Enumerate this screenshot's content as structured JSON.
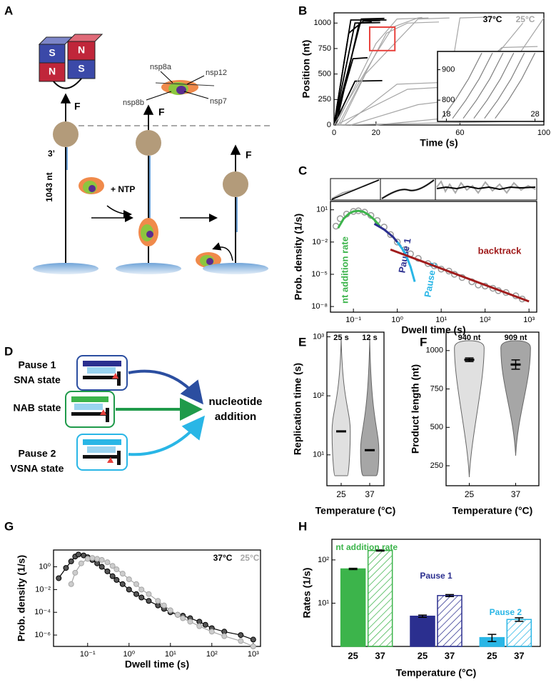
{
  "panel_labels": [
    "A",
    "B",
    "C",
    "D",
    "E",
    "F",
    "G",
    "H"
  ],
  "diagram_a": {
    "magnets": [
      "S",
      "N",
      "N",
      "S"
    ],
    "forces": [
      "F",
      "F",
      "F"
    ],
    "proteins": [
      "nsp8a",
      "nsp12",
      "nsp8b",
      "nsp7"
    ],
    "end_label": "3’",
    "reagent": "+ NTP",
    "length": "1043 nt"
  },
  "diagram_d": {
    "pauses": [
      {
        "name": "Pause 1",
        "state": "SNA state"
      },
      {
        "name": "Pause 2",
        "state": "VSNA state"
      }
    ],
    "nab": "NAB state",
    "target": [
      "nucleotide",
      "addition"
    ]
  },
  "chart_data": [
    {
      "type": "line",
      "xlabel": "Time (s)",
      "ylabel": "Position (nt)",
      "xlim": [
        0,
        100
      ],
      "ylim": [
        0,
        1100
      ],
      "xticks": [
        0,
        20,
        60,
        100
      ],
      "yticks": [
        0,
        250,
        500,
        750,
        1000
      ],
      "series": [
        {
          "name": "37°C",
          "color": "#000000",
          "traces": [
            {
              "x": [
                0,
                8,
                25
              ],
              "values": [
                0,
                1030,
                1030
              ]
            },
            {
              "x": [
                0,
                10,
                22
              ],
              "values": [
                0,
                1000,
                1005
              ]
            },
            {
              "x": [
                0,
                7,
                14,
                22
              ],
              "values": [
                0,
                900,
                1020,
                1025
              ]
            },
            {
              "x": [
                1,
                12,
                18
              ],
              "values": [
                0,
                1000,
                1010
              ]
            },
            {
              "x": [
                0,
                9,
                16
              ],
              "values": [
                0,
                650,
                660
              ]
            },
            {
              "x": [
                0,
                10,
                23
              ],
              "values": [
                0,
                430,
                435
              ]
            },
            {
              "x": [
                0,
                13,
                24
              ],
              "values": [
                0,
                1040,
                1045
              ]
            }
          ]
        },
        {
          "name": "25°C",
          "color": "#a6a6a6",
          "traces": [
            {
              "x": [
                1,
                20,
                30,
                45
              ],
              "values": [
                0,
                800,
                1040,
                1050
              ]
            },
            {
              "x": [
                2,
                25,
                35,
                50
              ],
              "values": [
                0,
                900,
                1000,
                1010
              ]
            },
            {
              "x": [
                3,
                15,
                40,
                55
              ],
              "values": [
                0,
                500,
                1040,
                1050
              ]
            },
            {
              "x": [
                5,
                30,
                55,
                60,
                75
              ],
              "values": [
                0,
                400,
                420,
                1050,
                1060
              ]
            },
            {
              "x": [
                8,
                40,
                60,
                90
              ],
              "values": [
                0,
                200,
                250,
                1000
              ]
            },
            {
              "x": [
                20,
                70,
                85,
                100
              ],
              "values": [
                0,
                100,
                600,
                1050
              ]
            },
            {
              "x": [
                1,
                35,
                60,
                80,
                97
              ],
              "values": [
                0,
                350,
                380,
                760,
                770
              ]
            },
            {
              "x": [
                1,
                100
              ],
              "values": [
                0,
                40
              ]
            },
            {
              "x": [
                0,
                20,
                28,
                40,
                42
              ],
              "values": [
                0,
                700,
                960,
                1050,
                1055
              ]
            }
          ]
        }
      ],
      "inset": {
        "xlim": [
          17,
          29
        ],
        "ylim": [
          730,
          960
        ],
        "xticks": [
          18,
          28
        ],
        "yticks": [
          800,
          900
        ],
        "color": "#808080",
        "traces": [
          {
            "x": [
              17.5,
              19,
              20.5,
              22
            ],
            "values": [
              740,
              800,
              870,
              955
            ]
          },
          {
            "x": [
              18.7,
              20.2,
              21.7,
              23.2
            ],
            "values": [
              740,
              800,
              870,
              955
            ]
          },
          {
            "x": [
              19.9,
              21.4,
              22.9,
              24.4
            ],
            "values": [
              740,
              800,
              870,
              955
            ]
          },
          {
            "x": [
              21.1,
              22.6,
              24.1,
              25.6
            ],
            "values": [
              740,
              800,
              870,
              955
            ]
          },
          {
            "x": [
              22.3,
              23.8,
              25.3,
              26.8
            ],
            "values": [
              740,
              800,
              870,
              955
            ]
          },
          {
            "x": [
              23.5,
              25,
              26.5,
              28
            ],
            "values": [
              740,
              800,
              870,
              955
            ]
          }
        ],
        "box_color": "#e8413c"
      }
    },
    {
      "type": "scatter",
      "xlabel": "Dwell time (s)",
      "ylabel": "Prob. density (1/s)",
      "xlog": true,
      "ylog": true,
      "xlim": [
        0.03,
        1500
      ],
      "ylim": [
        3e-09,
        60
      ],
      "xticks": [
        {
          "value": 0.1,
          "label": "10⁻¹"
        },
        {
          "value": 1,
          "label": "10⁰"
        },
        {
          "value": 10,
          "label": "10¹"
        },
        {
          "value": 100,
          "label": "10²"
        },
        {
          "value": 1000,
          "label": "10³"
        }
      ],
      "yticks": [
        {
          "value": 10,
          "label": "10¹"
        },
        {
          "value": 0.01,
          "label": "10⁻²"
        },
        {
          "value": 1e-05,
          "label": "10⁻⁵"
        },
        {
          "value": 1e-08,
          "label": "10⁻⁸"
        }
      ],
      "color": "#9a9a9a",
      "x": [
        0.04,
        0.05,
        0.07,
        0.1,
        0.13,
        0.18,
        0.25,
        0.35,
        0.5,
        0.7,
        1,
        1.5,
        2,
        3,
        5,
        7,
        10,
        15,
        20,
        30,
        50,
        70,
        100,
        150,
        200,
        300,
        500,
        700
      ],
      "values": [
        0.3,
        1.5,
        4,
        7,
        8,
        6,
        3,
        1,
        0.25,
        0.05,
        0.01,
        0.002,
        0.0008,
        0.0003,
        0.0001,
        6e-05,
        3e-05,
        2e-05,
        1e-05,
        5e-06,
        2e-06,
        1e-06,
        8e-07,
        5e-07,
        3e-07,
        2e-07,
        1e-07,
        5e-08
      ],
      "fits": [
        {
          "name": "nt addition rate",
          "color": "#3cb44b",
          "x": [
            0.045,
            0.06,
            0.08,
            0.1,
            0.13,
            0.17,
            0.22,
            0.3,
            0.4
          ],
          "values": [
            0.2,
            1.5,
            4.5,
            7,
            8,
            6.5,
            3.5,
            1.2,
            0.3
          ]
        },
        {
          "name": "Pause 1",
          "color": "#2b2f8f",
          "x": [
            0.3,
            0.5,
            0.8,
            1.2
          ],
          "values": [
            0.5,
            0.15,
            0.03,
            0.004
          ]
        },
        {
          "name": "Pause 2",
          "color": "#29b6e6",
          "x": [
            1,
            1.5,
            2,
            2.5
          ],
          "values": [
            0.01,
            0.001,
            5e-05,
            2e-06
          ]
        },
        {
          "name": "backtrack",
          "color": "#a01c1c",
          "x": [
            0.7,
            1000
          ],
          "values": [
            0.002,
            3e-08
          ]
        }
      ]
    },
    {
      "type": "violin",
      "xlabel": "Temperature (°C)",
      "ylabel": "Replication time (s)",
      "ylog": true,
      "ylim": [
        3,
        1200
      ],
      "yticks": [
        {
          "value": 10,
          "label": "10¹"
        },
        {
          "value": 100,
          "label": "10²"
        },
        {
          "value": 1000,
          "label": "10³"
        }
      ],
      "categories": [
        "25",
        "37"
      ],
      "values": [
        25,
        12
      ],
      "value_labels": [
        "25 s",
        "12 s"
      ],
      "colors": [
        "#e0e0e0",
        "#a6a6a6"
      ]
    },
    {
      "type": "violin",
      "xlabel": "Temperature (°C)",
      "ylabel": "Product length (nt)",
      "ylim": [
        120,
        1120
      ],
      "yticks": [
        250,
        500,
        750,
        1000
      ],
      "categories": [
        "25",
        "37"
      ],
      "values": [
        940,
        909
      ],
      "errors": [
        12,
        30
      ],
      "value_labels": [
        "940 nt",
        "909 nt"
      ],
      "colors": [
        "#e0e0e0",
        "#a6a6a6"
      ]
    },
    {
      "type": "scatter",
      "xlabel": "Dwell time (s)",
      "ylabel": "Prob. density (1/s)",
      "xlog": true,
      "ylog": true,
      "xlim": [
        0.015,
        1500
      ],
      "ylim": [
        1e-07,
        30
      ],
      "xticks": [
        {
          "value": 0.1,
          "label": "10⁻¹"
        },
        {
          "value": 1,
          "label": "10⁰"
        },
        {
          "value": 10,
          "label": "10¹"
        },
        {
          "value": 100,
          "label": "10²"
        },
        {
          "value": 1000,
          "label": "10³"
        }
      ],
      "yticks": [
        {
          "value": 1,
          "label": "10⁰"
        },
        {
          "value": 0.01,
          "label": "10⁻²"
        },
        {
          "value": 0.0001,
          "label": "10⁻⁴"
        },
        {
          "value": 1e-06,
          "label": "10⁻⁶"
        }
      ],
      "series": [
        {
          "name": "37°C",
          "color": "#000000",
          "x": [
            0.02,
            0.03,
            0.04,
            0.05,
            0.06,
            0.08,
            0.1,
            0.13,
            0.17,
            0.22,
            0.3,
            0.4,
            0.5,
            0.7,
            1,
            1.5,
            2,
            3,
            5,
            7,
            10,
            15,
            20,
            30,
            50,
            70,
            100,
            200,
            500,
            1000
          ],
          "values": [
            0.1,
            0.8,
            3,
            8,
            12,
            10,
            7,
            4,
            2,
            1,
            0.4,
            0.15,
            0.07,
            0.03,
            0.01,
            0.004,
            0.002,
            0.001,
            0.0004,
            0.0002,
            0.0001,
            6e-05,
            5e-05,
            3e-05,
            1.5e-05,
            8e-06,
            4e-06,
            2e-06,
            1e-06,
            4e-07
          ]
        },
        {
          "name": "25°C",
          "color": "#a6a6a6",
          "x": [
            0.04,
            0.05,
            0.07,
            0.1,
            0.13,
            0.17,
            0.22,
            0.3,
            0.4,
            0.5,
            0.7,
            1,
            1.5,
            2,
            3,
            5,
            7,
            10,
            15,
            20,
            30,
            50,
            100,
            200,
            500,
            1000
          ],
          "values": [
            0.03,
            0.3,
            2,
            5,
            6,
            5,
            4,
            2.5,
            1.2,
            0.6,
            0.25,
            0.08,
            0.03,
            0.01,
            0.004,
            0.001,
            0.0004,
            0.00015,
            6e-05,
            3e-05,
            1.5e-05,
            6e-06,
            2e-06,
            8e-07,
            3e-07,
            1e-07
          ]
        }
      ]
    },
    {
      "type": "bar",
      "xlabel": "Temperature (°C)",
      "ylabel": "Rates (1/s)",
      "ylog": true,
      "ylim": [
        1,
        300
      ],
      "yticks": [
        {
          "value": 10,
          "label": "10¹"
        },
        {
          "value": 100,
          "label": "10²"
        }
      ],
      "groups": [
        "nt addition rate",
        "Pause 1",
        "Pause 2"
      ],
      "categories": [
        "25",
        "37",
        "25",
        "37",
        "25",
        "37"
      ],
      "values": [
        62,
        165,
        5,
        15,
        1.6,
        4.2
      ],
      "errors": [
        2,
        5,
        0.3,
        0.8,
        0.3,
        0.4
      ],
      "colors": [
        "#3cb44b",
        "#3cb44b",
        "#2b2f8f",
        "#2b2f8f",
        "#29b6e6",
        "#29b6e6"
      ],
      "hatched": [
        false,
        true,
        false,
        true,
        false,
        true
      ]
    }
  ]
}
